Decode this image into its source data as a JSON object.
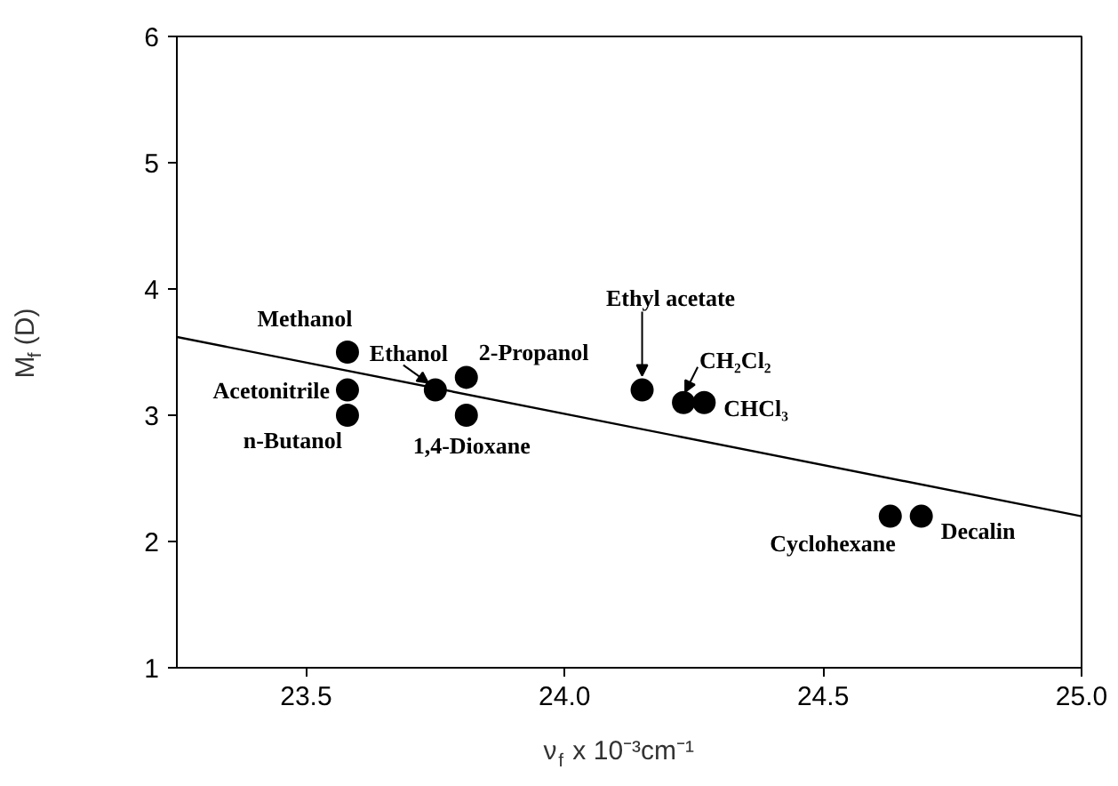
{
  "chart_data": {
    "type": "scatter",
    "xlabel": "ν$_{f}$ x 10⁻³cm⁻¹",
    "ylabel": "M$_{f}$ (D)",
    "xlim": [
      23.25,
      25.0
    ],
    "ylim": [
      1,
      6
    ],
    "xticks": [
      23.5,
      {
        "value": 24.0,
        "label": "24.0"
      },
      24.5,
      {
        "value": 25.0,
        "label": "25.0"
      }
    ],
    "yticks": [
      1,
      2,
      3,
      4,
      5,
      6
    ],
    "grid": false,
    "series": [
      {
        "type": "scatter",
        "marker": "circle",
        "color": "#000000",
        "x": [
          23.58,
          23.58,
          23.58,
          23.75,
          23.81,
          23.81,
          24.15,
          24.23,
          24.27,
          24.63,
          24.69
        ],
        "values": [
          3.5,
          3.2,
          3.0,
          3.2,
          3.3,
          3.0,
          3.2,
          3.1,
          3.1,
          2.2,
          2.2
        ]
      },
      {
        "type": "line",
        "marker": "none",
        "color": "#000000",
        "line_style": "solid",
        "x": [
          23.25,
          25.0
        ],
        "values": [
          3.62,
          2.2
        ]
      }
    ],
    "annotations": [
      {
        "text": "Methanol",
        "x": 23.58,
        "y": 3.5
      },
      {
        "text": "Acetonitrile",
        "x": 23.58,
        "y": 3.2
      },
      {
        "text": "n-Butanol",
        "x": 23.58,
        "y": 3.0
      },
      {
        "text": "Ethanol",
        "x": 23.75,
        "y": 3.2
      },
      {
        "text": "2-Propanol",
        "x": 23.81,
        "y": 3.3
      },
      {
        "text": "1,4-Dioxane",
        "x": 23.81,
        "y": 3.0
      },
      {
        "text": "Ethyl acetate",
        "x": 24.15,
        "y": 3.2
      },
      {
        "text": "CH₂Cl₂",
        "x": 24.23,
        "y": 3.1
      },
      {
        "text": "CHCl₃",
        "x": 24.27,
        "y": 3.1
      },
      {
        "text": "Cyclohexane",
        "x": 24.63,
        "y": 2.2
      },
      {
        "text": "Decalin",
        "x": 24.69,
        "y": 2.2
      }
    ]
  }
}
